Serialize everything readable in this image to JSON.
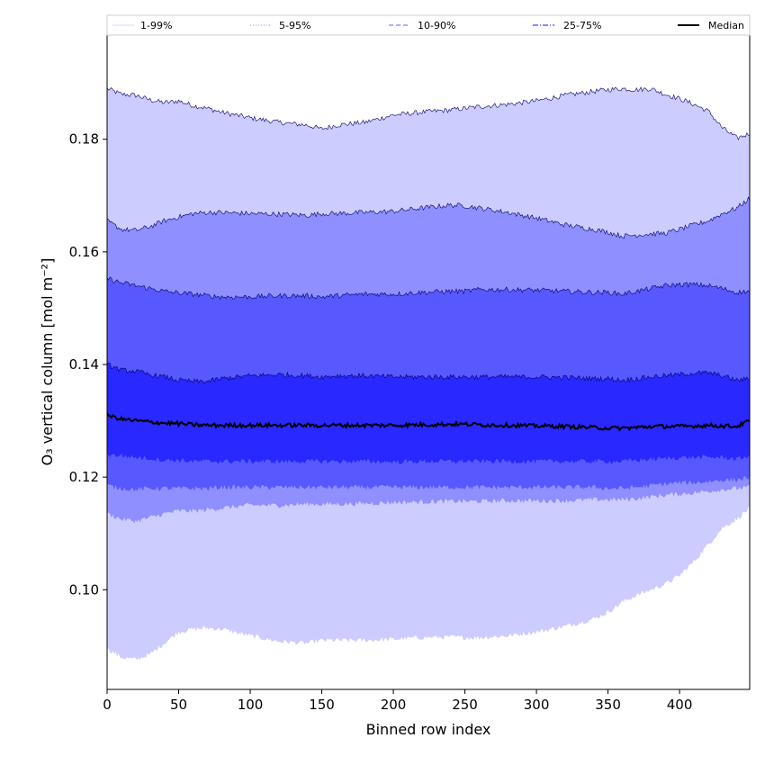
{
  "chart_data": {
    "type": "area",
    "title": "",
    "xlabel": "Binned row index",
    "ylabel": "O₃ vertical column [mol m⁻²]",
    "xlim": [
      0,
      449
    ],
    "ylim": [
      0.0823,
      0.1985
    ],
    "xticks": [
      0,
      50,
      100,
      150,
      200,
      250,
      300,
      350,
      400
    ],
    "yticks": [
      0.1,
      0.12,
      0.14,
      0.16,
      0.18
    ],
    "ytick_labels": [
      "0.10",
      "0.12",
      "0.14",
      "0.16",
      "0.18"
    ],
    "legend": {
      "placement": "top",
      "entries": [
        {
          "label": "1-99%",
          "color": "#e0e0ff",
          "style": "solid"
        },
        {
          "label": "5-95%",
          "color": "#a0a0ff",
          "style": "dotted"
        },
        {
          "label": "10-90%",
          "color": "#8080ff",
          "style": "dashed"
        },
        {
          "label": "25-75%",
          "color": "#4040ff",
          "style": "dashdot"
        },
        {
          "label": "Median",
          "color": "#000000",
          "style": "solid"
        }
      ]
    },
    "x": [
      0,
      10,
      20,
      30,
      40,
      50,
      60,
      70,
      80,
      100,
      120,
      140,
      150,
      160,
      180,
      200,
      220,
      240,
      250,
      260,
      280,
      300,
      320,
      340,
      350,
      360,
      370,
      380,
      390,
      400,
      410,
      420,
      430,
      440,
      449
    ],
    "series": [
      {
        "name": "1-99%",
        "fill": "#ccccff",
        "lower": [
          0.0895,
          0.088,
          0.0876,
          0.0885,
          0.0905,
          0.0925,
          0.093,
          0.0932,
          0.093,
          0.0918,
          0.0908,
          0.0905,
          0.091,
          0.091,
          0.091,
          0.0912,
          0.0915,
          0.0916,
          0.0915,
          0.0915,
          0.0918,
          0.0925,
          0.0935,
          0.0948,
          0.096,
          0.0978,
          0.099,
          0.1,
          0.101,
          0.1025,
          0.105,
          0.108,
          0.111,
          0.1125,
          0.1145
        ],
        "upper": [
          0.189,
          0.188,
          0.1878,
          0.187,
          0.1865,
          0.1868,
          0.186,
          0.1855,
          0.1848,
          0.1838,
          0.183,
          0.1825,
          0.1818,
          0.1825,
          0.183,
          0.1843,
          0.1848,
          0.1852,
          0.1855,
          0.1858,
          0.1862,
          0.1868,
          0.1878,
          0.1885,
          0.1888,
          0.189,
          0.1888,
          0.189,
          0.188,
          0.1872,
          0.1862,
          0.185,
          0.182,
          0.1802,
          0.181
        ]
      },
      {
        "name": "5-95%",
        "fill": "#8f8fff",
        "lower": [
          0.1135,
          0.1125,
          0.1122,
          0.1128,
          0.1135,
          0.114,
          0.114,
          0.1142,
          0.1145,
          0.115,
          0.115,
          0.1152,
          0.1152,
          0.1152,
          0.1153,
          0.1155,
          0.1156,
          0.1157,
          0.1157,
          0.1157,
          0.1158,
          0.1158,
          0.1158,
          0.116,
          0.116,
          0.116,
          0.1162,
          0.1165,
          0.1168,
          0.117,
          0.1172,
          0.1175,
          0.1178,
          0.118,
          0.1182
        ],
        "upper": [
          0.1655,
          0.164,
          0.1638,
          0.1645,
          0.1655,
          0.1662,
          0.1668,
          0.167,
          0.167,
          0.1668,
          0.1667,
          0.1665,
          0.1668,
          0.1668,
          0.167,
          0.1672,
          0.1678,
          0.1683,
          0.1682,
          0.1678,
          0.167,
          0.166,
          0.1648,
          0.164,
          0.1635,
          0.1628,
          0.163,
          0.1632,
          0.1633,
          0.164,
          0.1648,
          0.1655,
          0.1668,
          0.1678,
          0.1695
        ]
      },
      {
        "name": "10-90%",
        "fill": "#5858ff",
        "lower": [
          0.1185,
          0.118,
          0.1178,
          0.118,
          0.118,
          0.118,
          0.118,
          0.118,
          0.1182,
          0.1182,
          0.1182,
          0.1182,
          0.1182,
          0.1182,
          0.1182,
          0.1182,
          0.1182,
          0.1182,
          0.1182,
          0.1182,
          0.1182,
          0.1182,
          0.1182,
          0.1182,
          0.118,
          0.118,
          0.1182,
          0.1185,
          0.1188,
          0.119,
          0.119,
          0.1192,
          0.1195,
          0.1195,
          0.12
        ],
        "upper": [
          0.1553,
          0.1545,
          0.154,
          0.1535,
          0.153,
          0.1527,
          0.1525,
          0.1522,
          0.152,
          0.152,
          0.1522,
          0.1522,
          0.152,
          0.1522,
          0.1525,
          0.1525,
          0.1528,
          0.153,
          0.153,
          0.1533,
          0.1533,
          0.1532,
          0.153,
          0.1528,
          0.1528,
          0.1525,
          0.153,
          0.1535,
          0.154,
          0.1542,
          0.1542,
          0.154,
          0.1535,
          0.1528,
          0.153
        ]
      },
      {
        "name": "25-75%",
        "fill": "#2828ff",
        "lower": [
          0.124,
          0.1238,
          0.1235,
          0.1233,
          0.123,
          0.123,
          0.1228,
          0.1228,
          0.1228,
          0.1228,
          0.1228,
          0.1228,
          0.1228,
          0.1228,
          0.1228,
          0.1227,
          0.1228,
          0.1228,
          0.1228,
          0.1228,
          0.1228,
          0.1228,
          0.1228,
          0.1228,
          0.1228,
          0.1228,
          0.123,
          0.1232,
          0.1233,
          0.1235,
          0.1235,
          0.1235,
          0.1235,
          0.1232,
          0.1238
        ],
        "upper": [
          0.14,
          0.139,
          0.1388,
          0.1382,
          0.1378,
          0.1372,
          0.137,
          0.137,
          0.1375,
          0.138,
          0.1382,
          0.138,
          0.1378,
          0.138,
          0.138,
          0.1378,
          0.1378,
          0.1378,
          0.1378,
          0.1378,
          0.1378,
          0.1378,
          0.1377,
          0.1375,
          0.1375,
          0.1372,
          0.1375,
          0.1378,
          0.138,
          0.1382,
          0.1385,
          0.1385,
          0.138,
          0.1372,
          0.1375
        ]
      },
      {
        "name": "Median",
        "fill": "none",
        "values": [
          0.131,
          0.1303,
          0.13,
          0.1298,
          0.1296,
          0.1295,
          0.1293,
          0.1292,
          0.1292,
          0.1292,
          0.1292,
          0.1292,
          0.1292,
          0.1292,
          0.1292,
          0.1292,
          0.1293,
          0.1294,
          0.1294,
          0.1293,
          0.1292,
          0.1291,
          0.129,
          0.1288,
          0.1287,
          0.1287,
          0.1288,
          0.129,
          0.129,
          0.129,
          0.1291,
          0.1292,
          0.1291,
          0.129,
          0.13
        ]
      }
    ]
  }
}
